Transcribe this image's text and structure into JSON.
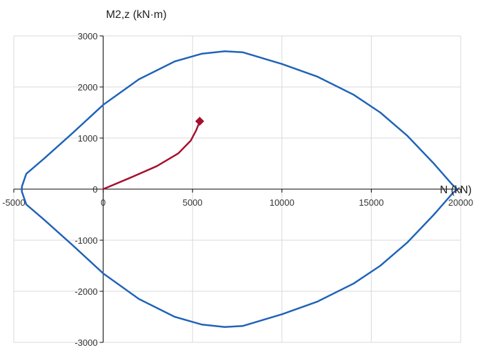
{
  "chart_data": {
    "type": "line",
    "title": "",
    "xlabel": "N (kN)",
    "ylabel": "M2,z (kN·m)",
    "xlim": [
      -5000,
      20000
    ],
    "ylim": [
      -3000,
      3000
    ],
    "x_ticks": [
      -5000,
      0,
      5000,
      10000,
      15000,
      20000
    ],
    "y_ticks": [
      -3000,
      -2000,
      -1000,
      0,
      1000,
      2000,
      3000
    ],
    "x_tick_labels": [
      "-5000",
      "0",
      "5000",
      "10000",
      "15000",
      "20000"
    ],
    "y_tick_labels": [
      "-3000",
      "-2000",
      "-1000",
      "0",
      "1000",
      "2000",
      "3000"
    ],
    "grid": true,
    "series": [
      {
        "color": "#1f63b8",
        "closed": true,
        "x": [
          -4550,
          -4300,
          -3300,
          -1700,
          0,
          2000,
          4000,
          5500,
          6800,
          7800,
          10000,
          12000,
          14000,
          15500,
          17000,
          18500,
          19500,
          19800,
          19500,
          18500,
          17000,
          15500,
          14000,
          12000,
          10000,
          7800,
          6800,
          5500,
          4000,
          2000,
          0,
          -1700,
          -3300,
          -4300,
          -4550
        ],
        "y": [
          50,
          300,
          600,
          1100,
          1650,
          2150,
          2500,
          2650,
          2700,
          2680,
          2450,
          2200,
          1850,
          1500,
          1050,
          500,
          100,
          0,
          -100,
          -500,
          -1050,
          -1500,
          -1850,
          -2200,
          -2450,
          -2680,
          -2700,
          -2650,
          -2500,
          -2150,
          -1650,
          -1100,
          -600,
          -300,
          -50
        ]
      },
      {
        "color": "#a50f2d",
        "closed": false,
        "x": [
          0,
          1500,
          3000,
          4200,
          4900,
          5200,
          5350,
          5400
        ],
        "y": [
          0,
          220,
          450,
          700,
          950,
          1150,
          1280,
          1330
        ]
      }
    ],
    "markers": [
      {
        "x": 5400,
        "y": 1330,
        "shape": "diamond",
        "color": "#a50f2d"
      }
    ]
  }
}
